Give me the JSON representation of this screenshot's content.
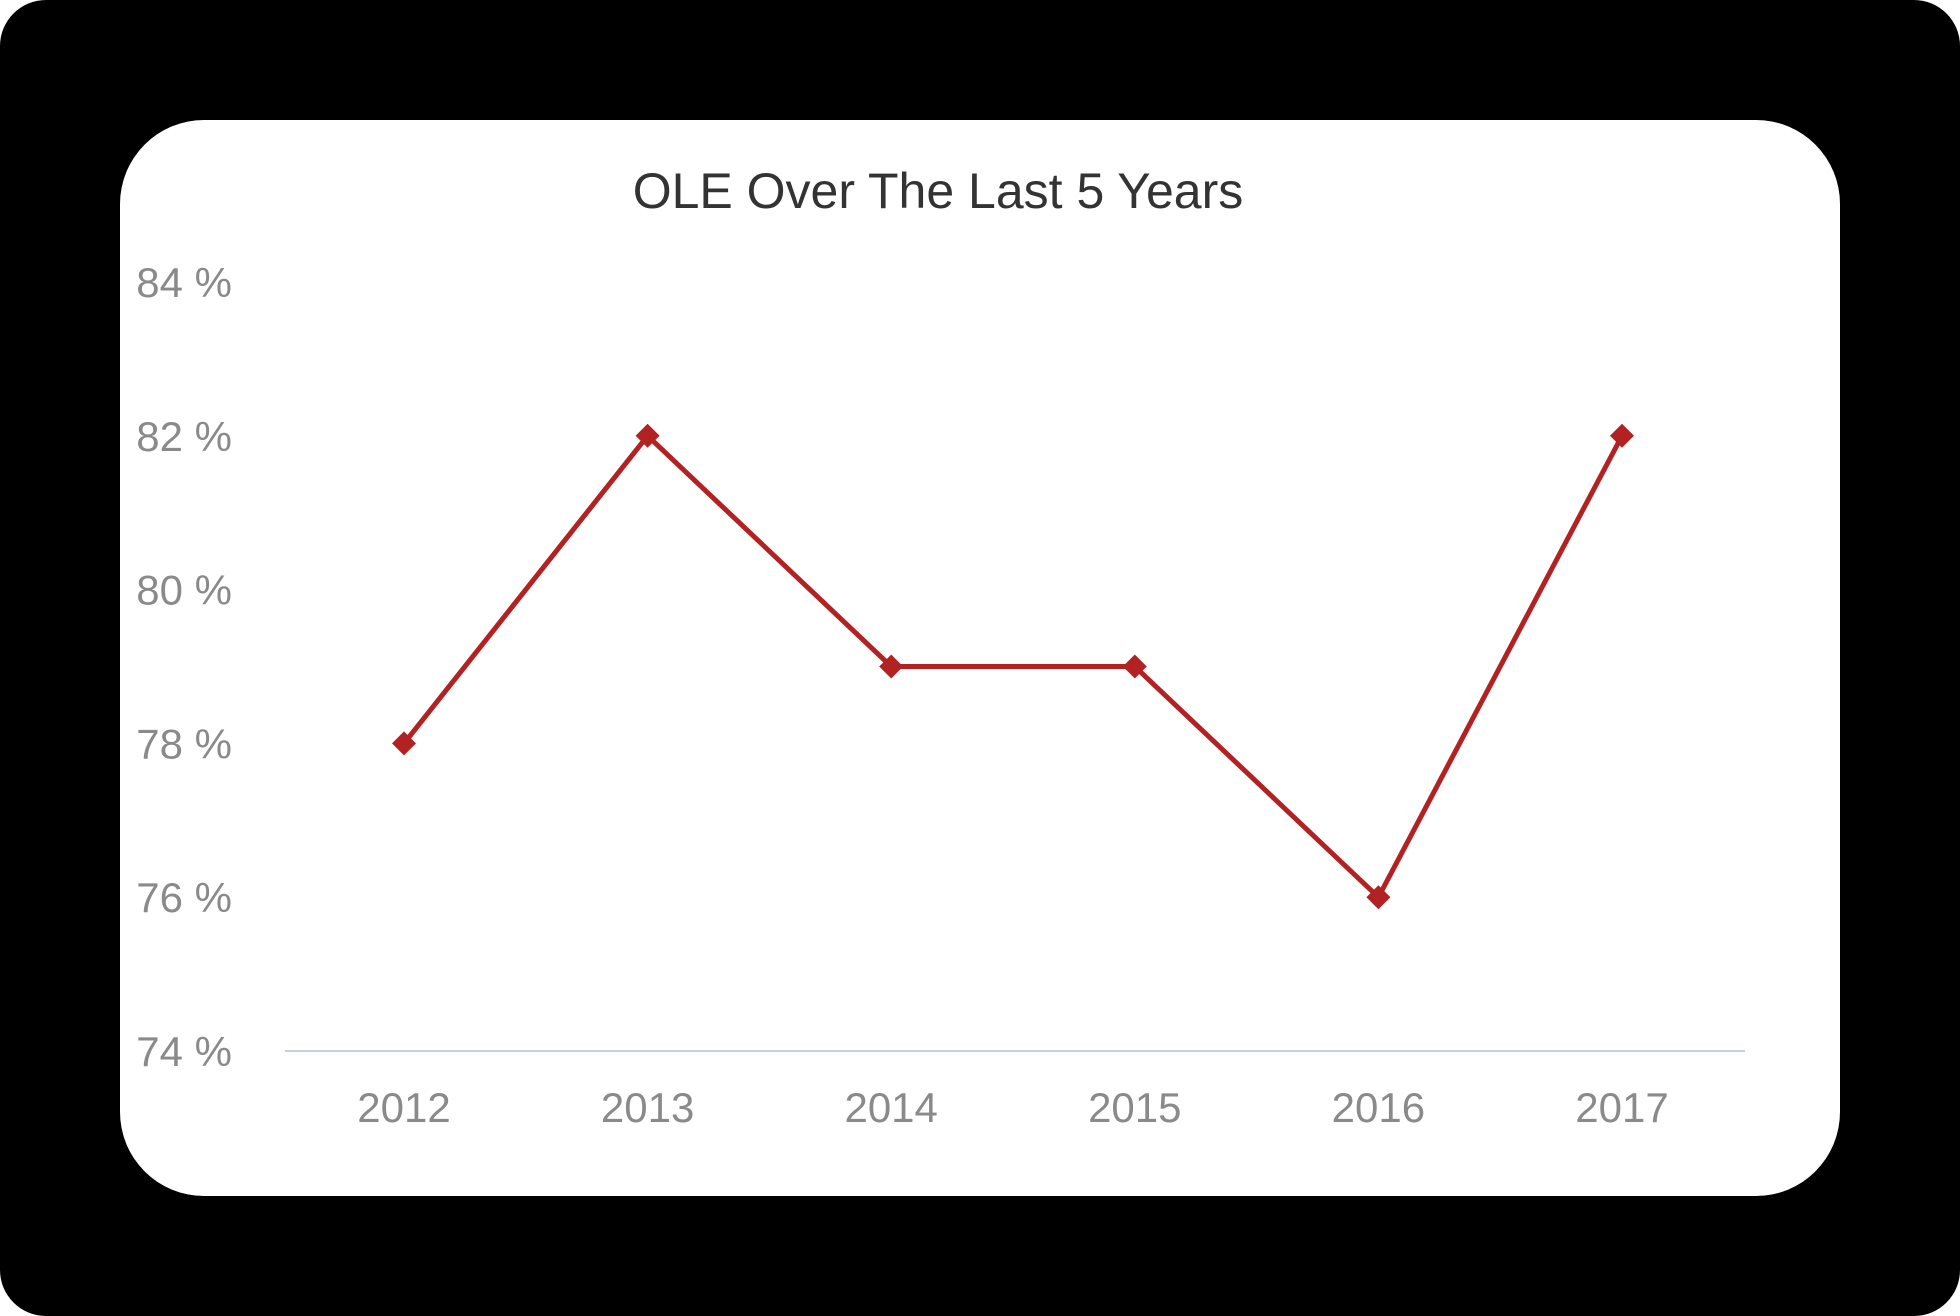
{
  "chart_data": {
    "type": "line",
    "title": "OLE Over The Last 5 Years",
    "xlabel": "",
    "ylabel": "",
    "categories": [
      "2012",
      "2013",
      "2014",
      "2015",
      "2016",
      "2017"
    ],
    "series": [
      {
        "values": [
          78,
          82,
          79,
          79,
          76,
          82
        ],
        "color": "#b22222"
      }
    ],
    "ylim": [
      74,
      84
    ],
    "yticks": [
      74,
      76,
      78,
      80,
      82,
      84
    ],
    "ytick_labels": [
      "74 %",
      "76 %",
      "78 %",
      "80 %",
      "82 %",
      "84 %"
    ],
    "grid": false,
    "legend": "none",
    "baseline_color": "#c5cfe6",
    "marker": "diamond"
  }
}
